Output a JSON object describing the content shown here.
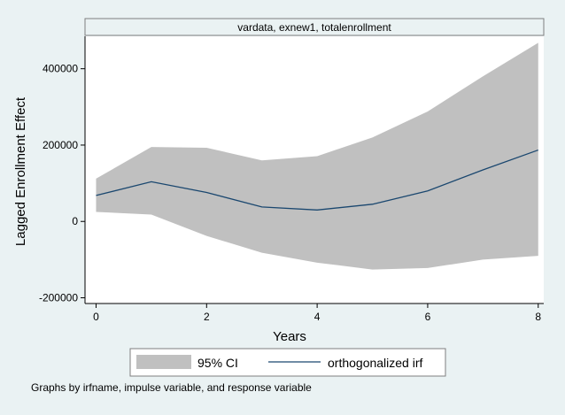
{
  "chart_data": {
    "type": "area",
    "panel_title": "vardata, exnew1, totalenrollment",
    "xlabel": "Years",
    "ylabel": "Lagged Enrollment Effect",
    "xlim": [
      -0.2,
      8.1
    ],
    "ylim": [
      -215000,
      485000
    ],
    "x_ticks": [
      0,
      2,
      4,
      6,
      8
    ],
    "y_ticks": [
      -200000,
      0,
      200000,
      400000
    ],
    "x": [
      0,
      1,
      2,
      3,
      4,
      5,
      6,
      7,
      8
    ],
    "series": [
      {
        "name": "95% CI",
        "kind": "band",
        "lower": [
          25000,
          18000,
          -38000,
          -82000,
          -108000,
          -126000,
          -122000,
          -100000,
          -90000
        ],
        "upper": [
          112000,
          195000,
          193000,
          160000,
          171000,
          220000,
          288000,
          380000,
          468000
        ]
      },
      {
        "name": "orthogonalized irf",
        "kind": "line",
        "values": [
          68000,
          104000,
          76000,
          38000,
          30000,
          45000,
          80000,
          135000,
          187000
        ]
      }
    ],
    "legend": [
      "95% CI",
      "orthogonalized irf"
    ],
    "legend_position": "bottom",
    "note": "Graphs by irfname, impulse variable, and response variable",
    "grid": false
  },
  "colors": {
    "background": "#eaf2f3",
    "plot_background": "#ffffff",
    "band": "#c0c0c0",
    "line": "#1a476f",
    "title_strip": "#eaf2f3"
  }
}
